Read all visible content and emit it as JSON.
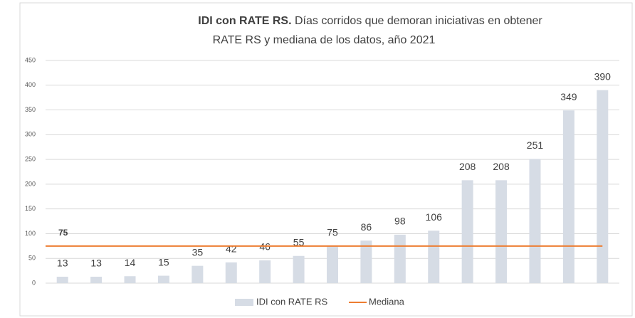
{
  "chart_data": {
    "type": "bar",
    "title_parts": [
      "IDI con RATE RS.",
      "Días corridos que demoran iniciativas en obtener",
      "RATE RS y mediana de los datos, año 2021"
    ],
    "categories": [
      null,
      null,
      null,
      null,
      null,
      null,
      null,
      null,
      null,
      null,
      null,
      null,
      null,
      null,
      null,
      null,
      null
    ],
    "series": [
      {
        "name": "IDI con RATE RS",
        "color": "#d6dce5",
        "values": [
          13,
          13,
          14,
          15,
          35,
          42,
          46,
          55,
          75,
          86,
          98,
          106,
          208,
          208,
          251,
          349,
          390
        ]
      }
    ],
    "median": {
      "name": "Mediana",
      "color": "#ed7d31",
      "value": 75
    },
    "ylim": [
      0,
      450
    ],
    "yticks": [
      0,
      50,
      100,
      150,
      200,
      250,
      300,
      350,
      400,
      450
    ],
    "grid": true,
    "legend": "bottom"
  }
}
